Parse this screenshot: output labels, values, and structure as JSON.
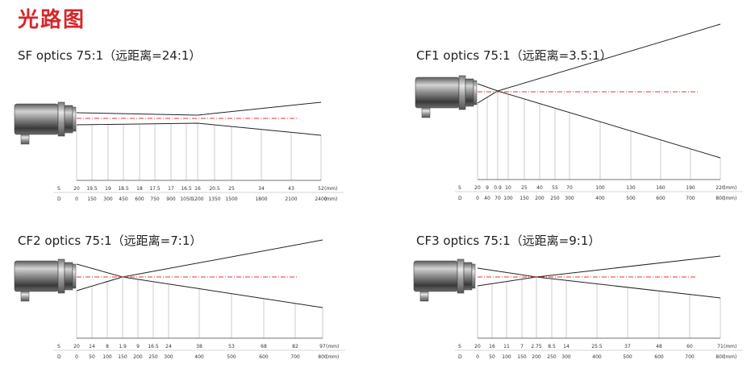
{
  "title": "光路图",
  "colors": {
    "title": "#d8252a",
    "axis": "#ee3333",
    "beam": "#222222",
    "grid": "#aaaaaa"
  },
  "panels": [
    {
      "heading": "SF optics 75:1（远距离=24:1）",
      "s_label": "S",
      "d_label": "D",
      "s_values": [
        "20",
        "19.5",
        "19",
        "18.5",
        "18",
        "17.5",
        "17",
        "16.5",
        "16",
        "20.5",
        "25",
        "34",
        "43",
        "52"
      ],
      "s_unit": "(mm)",
      "d_values": [
        "0",
        "150",
        "300",
        "450",
        "600",
        "750",
        "900",
        "1050",
        "1200",
        "1350",
        "1500",
        "1800",
        "2100",
        "2400"
      ],
      "d_unit": "(mm)"
    },
    {
      "heading": "CF1 optics 75:1（远距离=3.5:1）",
      "s_label": "S",
      "d_label": "D",
      "s_values": [
        "20",
        "9",
        "0.9",
        "10",
        "25",
        "40",
        "55",
        "70",
        "100",
        "130",
        "160",
        "190",
        "220"
      ],
      "s_unit": "(mm)",
      "d_values": [
        "0",
        "40",
        "70",
        "100",
        "150",
        "200",
        "250",
        "300",
        "400",
        "500",
        "600",
        "700",
        "800"
      ],
      "d_unit": "(mm)"
    },
    {
      "heading": "CF2 optics 75:1（远距离=7:1）",
      "s_label": "S",
      "d_label": "D",
      "s_values": [
        "20",
        "14",
        "8",
        "1.9",
        "9",
        "16.5",
        "24",
        "38",
        "53",
        "68",
        "82",
        "97"
      ],
      "s_unit": "(mm)",
      "d_values": [
        "0",
        "50",
        "100",
        "150",
        "200",
        "250",
        "300",
        "400",
        "500",
        "600",
        "700",
        "800"
      ],
      "d_unit": "(mm)"
    },
    {
      "heading": "CF3 optics 75:1（远距离=9:1）",
      "s_label": "S",
      "d_label": "D",
      "s_values": [
        "20",
        "16",
        "11",
        "7",
        "2.75",
        "8.5",
        "14",
        "25.5",
        "37",
        "48",
        "60",
        "71"
      ],
      "s_unit": "(mm)",
      "d_values": [
        "0",
        "50",
        "100",
        "150",
        "200",
        "250",
        "300",
        "400",
        "500",
        "600",
        "700",
        "800"
      ],
      "d_unit": "(mm)"
    }
  ]
}
